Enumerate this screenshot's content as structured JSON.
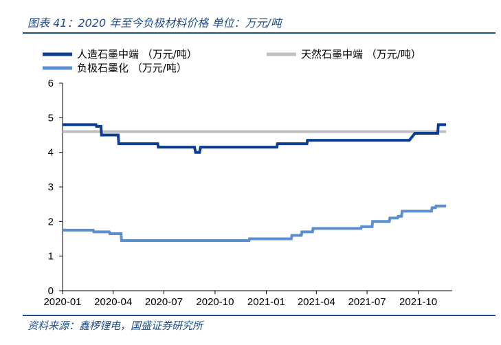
{
  "header": {
    "title": "图表 41：2020 年至今负极材料价格 单位：万元/吨"
  },
  "footer": {
    "source": "资料来源：鑫椤锂电，国盛证券研究所"
  },
  "chart_data": {
    "type": "line",
    "title": "",
    "xlabel": "",
    "ylabel": "",
    "ylim": [
      0,
      6
    ],
    "yticks": [
      "0",
      "1",
      "2",
      "3",
      "4",
      "5",
      "6"
    ],
    "xlim": [
      "2020-01-01",
      "2021-12-01"
    ],
    "xticks": [
      {
        "date": "2020-01-01",
        "label": "2020-01"
      },
      {
        "date": "2020-04-01",
        "label": "2020-04"
      },
      {
        "date": "2020-07-01",
        "label": "2020-07"
      },
      {
        "date": "2020-10-01",
        "label": "2020-10"
      },
      {
        "date": "2021-01-01",
        "label": "2021-01"
      },
      {
        "date": "2021-04-01",
        "label": "2021-04"
      },
      {
        "date": "2021-07-01",
        "label": "2021-07"
      },
      {
        "date": "2021-10-01",
        "label": "2021-10"
      }
    ],
    "legend_position": "top",
    "series": [
      {
        "name": "人造石墨中端 （万元/吨）",
        "color": "#0b3d91",
        "points": [
          [
            "2020-01-01",
            4.8
          ],
          [
            "2020-03-01",
            4.8
          ],
          [
            "2020-03-02",
            4.75
          ],
          [
            "2020-03-10",
            4.75
          ],
          [
            "2020-03-11",
            4.5
          ],
          [
            "2020-04-10",
            4.5
          ],
          [
            "2020-04-11",
            4.25
          ],
          [
            "2020-06-20",
            4.25
          ],
          [
            "2020-06-21",
            4.15
          ],
          [
            "2020-08-25",
            4.15
          ],
          [
            "2020-08-27",
            4.0
          ],
          [
            "2020-09-03",
            4.0
          ],
          [
            "2020-09-05",
            4.15
          ],
          [
            "2021-01-20",
            4.15
          ],
          [
            "2021-01-21",
            4.25
          ],
          [
            "2021-03-15",
            4.25
          ],
          [
            "2021-03-16",
            4.35
          ],
          [
            "2021-09-15",
            4.35
          ],
          [
            "2021-09-25",
            4.55
          ],
          [
            "2021-11-05",
            4.55
          ],
          [
            "2021-11-06",
            4.8
          ],
          [
            "2021-11-20",
            4.8
          ]
        ]
      },
      {
        "name": "天然石墨中端 （万元/吨）",
        "color": "#bfbfbf",
        "points": [
          [
            "2020-01-01",
            4.6
          ],
          [
            "2021-11-20",
            4.6
          ]
        ]
      },
      {
        "name": "负极石墨化 （万元/吨）",
        "color": "#5b8fce",
        "points": [
          [
            "2020-01-01",
            1.75
          ],
          [
            "2020-02-25",
            1.75
          ],
          [
            "2020-02-26",
            1.7
          ],
          [
            "2020-03-25",
            1.7
          ],
          [
            "2020-03-26",
            1.65
          ],
          [
            "2020-04-15",
            1.65
          ],
          [
            "2020-04-16",
            1.45
          ],
          [
            "2020-12-01",
            1.45
          ],
          [
            "2020-12-02",
            1.5
          ],
          [
            "2021-02-15",
            1.5
          ],
          [
            "2021-02-16",
            1.6
          ],
          [
            "2021-03-05",
            1.6
          ],
          [
            "2021-03-06",
            1.7
          ],
          [
            "2021-03-25",
            1.7
          ],
          [
            "2021-03-26",
            1.8
          ],
          [
            "2021-06-20",
            1.8
          ],
          [
            "2021-06-21",
            1.85
          ],
          [
            "2021-07-10",
            1.85
          ],
          [
            "2021-07-11",
            2.0
          ],
          [
            "2021-08-10",
            2.0
          ],
          [
            "2021-08-11",
            2.1
          ],
          [
            "2021-08-25",
            2.1
          ],
          [
            "2021-08-26",
            2.15
          ],
          [
            "2021-09-01",
            2.15
          ],
          [
            "2021-09-02",
            2.3
          ],
          [
            "2021-10-25",
            2.3
          ],
          [
            "2021-10-26",
            2.4
          ],
          [
            "2021-11-01",
            2.4
          ],
          [
            "2021-11-02",
            2.45
          ],
          [
            "2021-11-20",
            2.45
          ]
        ]
      }
    ]
  }
}
